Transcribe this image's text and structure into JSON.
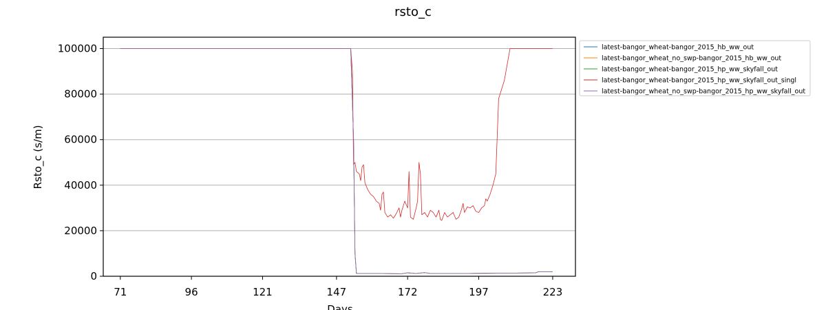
{
  "colors": {
    "series": [
      "#1f77b4",
      "#ff7f0e",
      "#2ca02c",
      "#d62728",
      "#9467bd"
    ],
    "grid": "#b0b0b0",
    "background": "#ffffff"
  },
  "chart_data": {
    "type": "line",
    "title": "rsto_c",
    "xlabel": "Days",
    "ylabel": "Rsto_c (s/m)",
    "xlim": [
      65,
      231
    ],
    "ylim": [
      0,
      105000
    ],
    "xticks": [
      71,
      96,
      121,
      147,
      172,
      197,
      223
    ],
    "yticks": [
      0,
      20000,
      40000,
      60000,
      80000,
      100000
    ],
    "grid": "horizontal",
    "legend_position": "outside-right-top",
    "series": [
      {
        "name": "latest-bangor_wheat-bangor_2015_hb_ww_out",
        "points": [
          [
            71,
            100000
          ],
          [
            150,
            100000
          ],
          [
            152,
            100000
          ],
          [
            153,
            60000
          ],
          [
            153.5,
            10000
          ],
          [
            154,
            1200
          ],
          [
            160,
            1200
          ],
          [
            170,
            1100
          ],
          [
            172,
            1500
          ],
          [
            175,
            1200
          ],
          [
            178,
            1600
          ],
          [
            180,
            1200
          ],
          [
            190,
            1200
          ],
          [
            200,
            1300
          ],
          [
            210,
            1400
          ],
          [
            217,
            1500
          ],
          [
            218,
            2000
          ],
          [
            223,
            2000
          ]
        ]
      },
      {
        "name": "latest-bangor_wheat_no_swp-bangor_2015_hb_ww_out",
        "points": [
          [
            71,
            100000
          ],
          [
            150,
            100000
          ],
          [
            152,
            100000
          ],
          [
            153,
            60000
          ],
          [
            153.5,
            10000
          ],
          [
            154,
            1200
          ],
          [
            160,
            1200
          ],
          [
            170,
            1100
          ],
          [
            172,
            1500
          ],
          [
            175,
            1200
          ],
          [
            178,
            1600
          ],
          [
            180,
            1200
          ],
          [
            190,
            1200
          ],
          [
            200,
            1300
          ],
          [
            210,
            1400
          ],
          [
            217,
            1500
          ],
          [
            218,
            2000
          ],
          [
            223,
            2000
          ]
        ]
      },
      {
        "name": "latest-bangor_wheat-bangor_2015_hp_ww_skyfall_out",
        "points": [
          [
            71,
            100000
          ],
          [
            150,
            100000
          ],
          [
            152,
            100000
          ],
          [
            153,
            60000
          ],
          [
            153.5,
            10000
          ],
          [
            154,
            1200
          ],
          [
            160,
            1200
          ],
          [
            170,
            1100
          ],
          [
            172,
            1500
          ],
          [
            175,
            1200
          ],
          [
            178,
            1600
          ],
          [
            180,
            1200
          ],
          [
            190,
            1200
          ],
          [
            200,
            1300
          ],
          [
            210,
            1400
          ],
          [
            217,
            1500
          ],
          [
            218,
            2000
          ],
          [
            223,
            2000
          ]
        ]
      },
      {
        "name": "latest-bangor_wheat-bangor_2015_hp_ww_skyfall_out_singl",
        "points": [
          [
            71,
            100000
          ],
          [
            152,
            100000
          ],
          [
            152.6,
            90000
          ],
          [
            153,
            49000
          ],
          [
            153.5,
            50000
          ],
          [
            154,
            46000
          ],
          [
            155,
            45000
          ],
          [
            155.5,
            42000
          ],
          [
            156,
            48000
          ],
          [
            156.5,
            49000
          ],
          [
            157,
            41000
          ],
          [
            158,
            38000
          ],
          [
            159,
            36000
          ],
          [
            160,
            35000
          ],
          [
            161,
            33000
          ],
          [
            162,
            32000
          ],
          [
            162.5,
            29000
          ],
          [
            163,
            36000
          ],
          [
            163.5,
            37000
          ],
          [
            164,
            28000
          ],
          [
            165,
            26000
          ],
          [
            166,
            27000
          ],
          [
            167,
            25500
          ],
          [
            168,
            27500
          ],
          [
            169,
            30000
          ],
          [
            169.5,
            26000
          ],
          [
            170,
            29000
          ],
          [
            171,
            33000
          ],
          [
            172,
            30000
          ],
          [
            172.5,
            46000
          ],
          [
            173,
            26000
          ],
          [
            174,
            25000
          ],
          [
            175,
            30000
          ],
          [
            175.5,
            33000
          ],
          [
            176,
            50000
          ],
          [
            176.5,
            45000
          ],
          [
            177,
            27000
          ],
          [
            178,
            28000
          ],
          [
            179,
            26000
          ],
          [
            180,
            29000
          ],
          [
            181,
            28000
          ],
          [
            182,
            26000
          ],
          [
            183,
            29000
          ],
          [
            183.5,
            25000
          ],
          [
            184,
            24500
          ],
          [
            185,
            28000
          ],
          [
            186,
            26000
          ],
          [
            187,
            27000
          ],
          [
            188,
            28000
          ],
          [
            189,
            25000
          ],
          [
            190,
            26000
          ],
          [
            191,
            29500
          ],
          [
            191.5,
            32000
          ],
          [
            192,
            28000
          ],
          [
            193,
            30500
          ],
          [
            194,
            30000
          ],
          [
            195,
            31000
          ],
          [
            196,
            28500
          ],
          [
            197,
            28000
          ],
          [
            198,
            30000
          ],
          [
            199,
            31000
          ],
          [
            199.5,
            34000
          ],
          [
            200,
            33000
          ],
          [
            201,
            36000
          ],
          [
            202,
            40000
          ],
          [
            203,
            45000
          ],
          [
            204,
            78000
          ],
          [
            205,
            82000
          ],
          [
            206,
            86000
          ],
          [
            207,
            93000
          ],
          [
            208,
            100000
          ],
          [
            223,
            100000
          ]
        ]
      },
      {
        "name": "latest-bangor_wheat_no_swp-bangor_2015_hp_ww_skyfall_out",
        "points": [
          [
            71,
            100000
          ],
          [
            150,
            100000
          ],
          [
            152,
            100000
          ],
          [
            153,
            60000
          ],
          [
            153.5,
            10000
          ],
          [
            154,
            1200
          ],
          [
            160,
            1200
          ],
          [
            170,
            1100
          ],
          [
            172,
            1500
          ],
          [
            175,
            1200
          ],
          [
            178,
            1600
          ],
          [
            180,
            1200
          ],
          [
            190,
            1200
          ],
          [
            200,
            1300
          ],
          [
            210,
            1400
          ],
          [
            217,
            1500
          ],
          [
            218,
            2000
          ],
          [
            223,
            2000
          ]
        ]
      }
    ]
  }
}
